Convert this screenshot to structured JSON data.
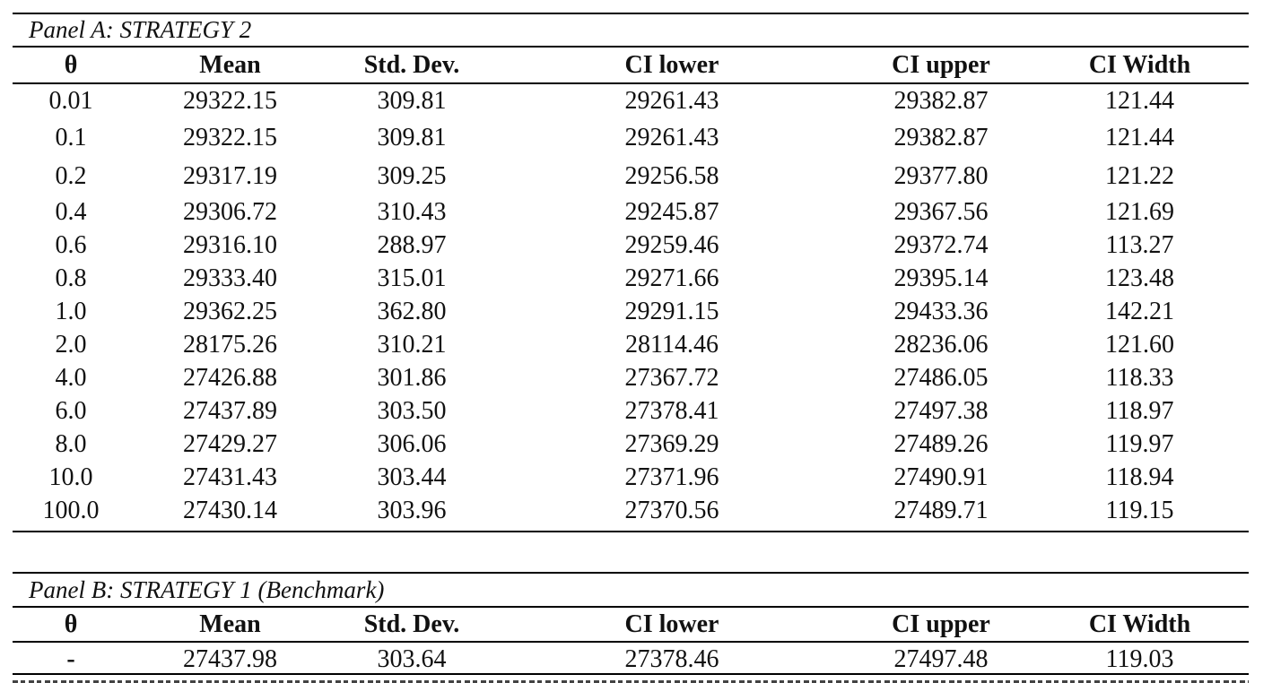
{
  "panel_a": {
    "title": "Panel A: STRATEGY 2",
    "headers": [
      "θ",
      "Mean",
      "Std. Dev.",
      "CI lower",
      "CI upper",
      "CI Width"
    ],
    "rows": [
      [
        "0.01",
        "29322.15",
        "309.81",
        "29261.43",
        "29382.87",
        "121.44"
      ],
      [
        "0.1",
        "29322.15",
        "309.81",
        "29261.43",
        "29382.87",
        "121.44"
      ],
      [
        "0.2",
        "29317.19",
        "309.25",
        "29256.58",
        "29377.80",
        "121.22"
      ],
      [
        "0.4",
        "29306.72",
        "310.43",
        "29245.87",
        "29367.56",
        "121.69"
      ],
      [
        "0.6",
        "29316.10",
        "288.97",
        "29259.46",
        "29372.74",
        "113.27"
      ],
      [
        "0.8",
        "29333.40",
        "315.01",
        "29271.66",
        "29395.14",
        "123.48"
      ],
      [
        "1.0",
        "29362.25",
        "362.80",
        "29291.15",
        "29433.36",
        "142.21"
      ],
      [
        "2.0",
        "28175.26",
        "310.21",
        "28114.46",
        "28236.06",
        "121.60"
      ],
      [
        "4.0",
        "27426.88",
        "301.86",
        "27367.72",
        "27486.05",
        "118.33"
      ],
      [
        "6.0",
        "27437.89",
        "303.50",
        "27378.41",
        "27497.38",
        "118.97"
      ],
      [
        "8.0",
        "27429.27",
        "306.06",
        "27369.29",
        "27489.26",
        "119.97"
      ],
      [
        "10.0",
        "27431.43",
        "303.44",
        "27371.96",
        "27490.91",
        "118.94"
      ],
      [
        "100.0",
        "27430.14",
        "303.96",
        "27370.56",
        "27489.71",
        "119.15"
      ]
    ]
  },
  "panel_b": {
    "title": "Panel B: STRATEGY 1 (Benchmark)",
    "headers": [
      "θ",
      "Mean",
      "Std. Dev.",
      "CI lower",
      "CI upper",
      "CI Width"
    ],
    "rows": [
      [
        "-",
        "27437.98",
        "303.64",
        "27378.46",
        "27497.48",
        "119.03"
      ]
    ]
  }
}
